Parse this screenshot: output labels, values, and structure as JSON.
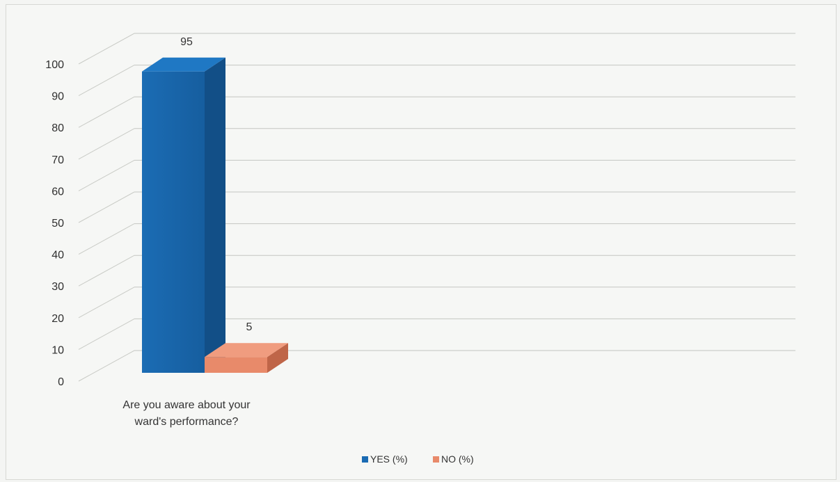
{
  "chart_data": {
    "type": "bar",
    "three_d": true,
    "categories": [
      "Are you aware about your ward's performance?"
    ],
    "category_label_lines": [
      "Are you aware about your",
      "ward's performance?"
    ],
    "series": [
      {
        "name": "YES (%)",
        "values": [
          95
        ],
        "color": "#1a6bb3"
      },
      {
        "name": "NO (%)",
        "values": [
          5
        ],
        "color": "#e88a6a"
      }
    ],
    "data_labels": [
      "95",
      "5"
    ],
    "y_ticks": [
      0,
      10,
      20,
      30,
      40,
      50,
      60,
      70,
      80,
      90,
      100
    ],
    "ylim": [
      0,
      100
    ],
    "grid": true,
    "legend_position": "bottom"
  }
}
